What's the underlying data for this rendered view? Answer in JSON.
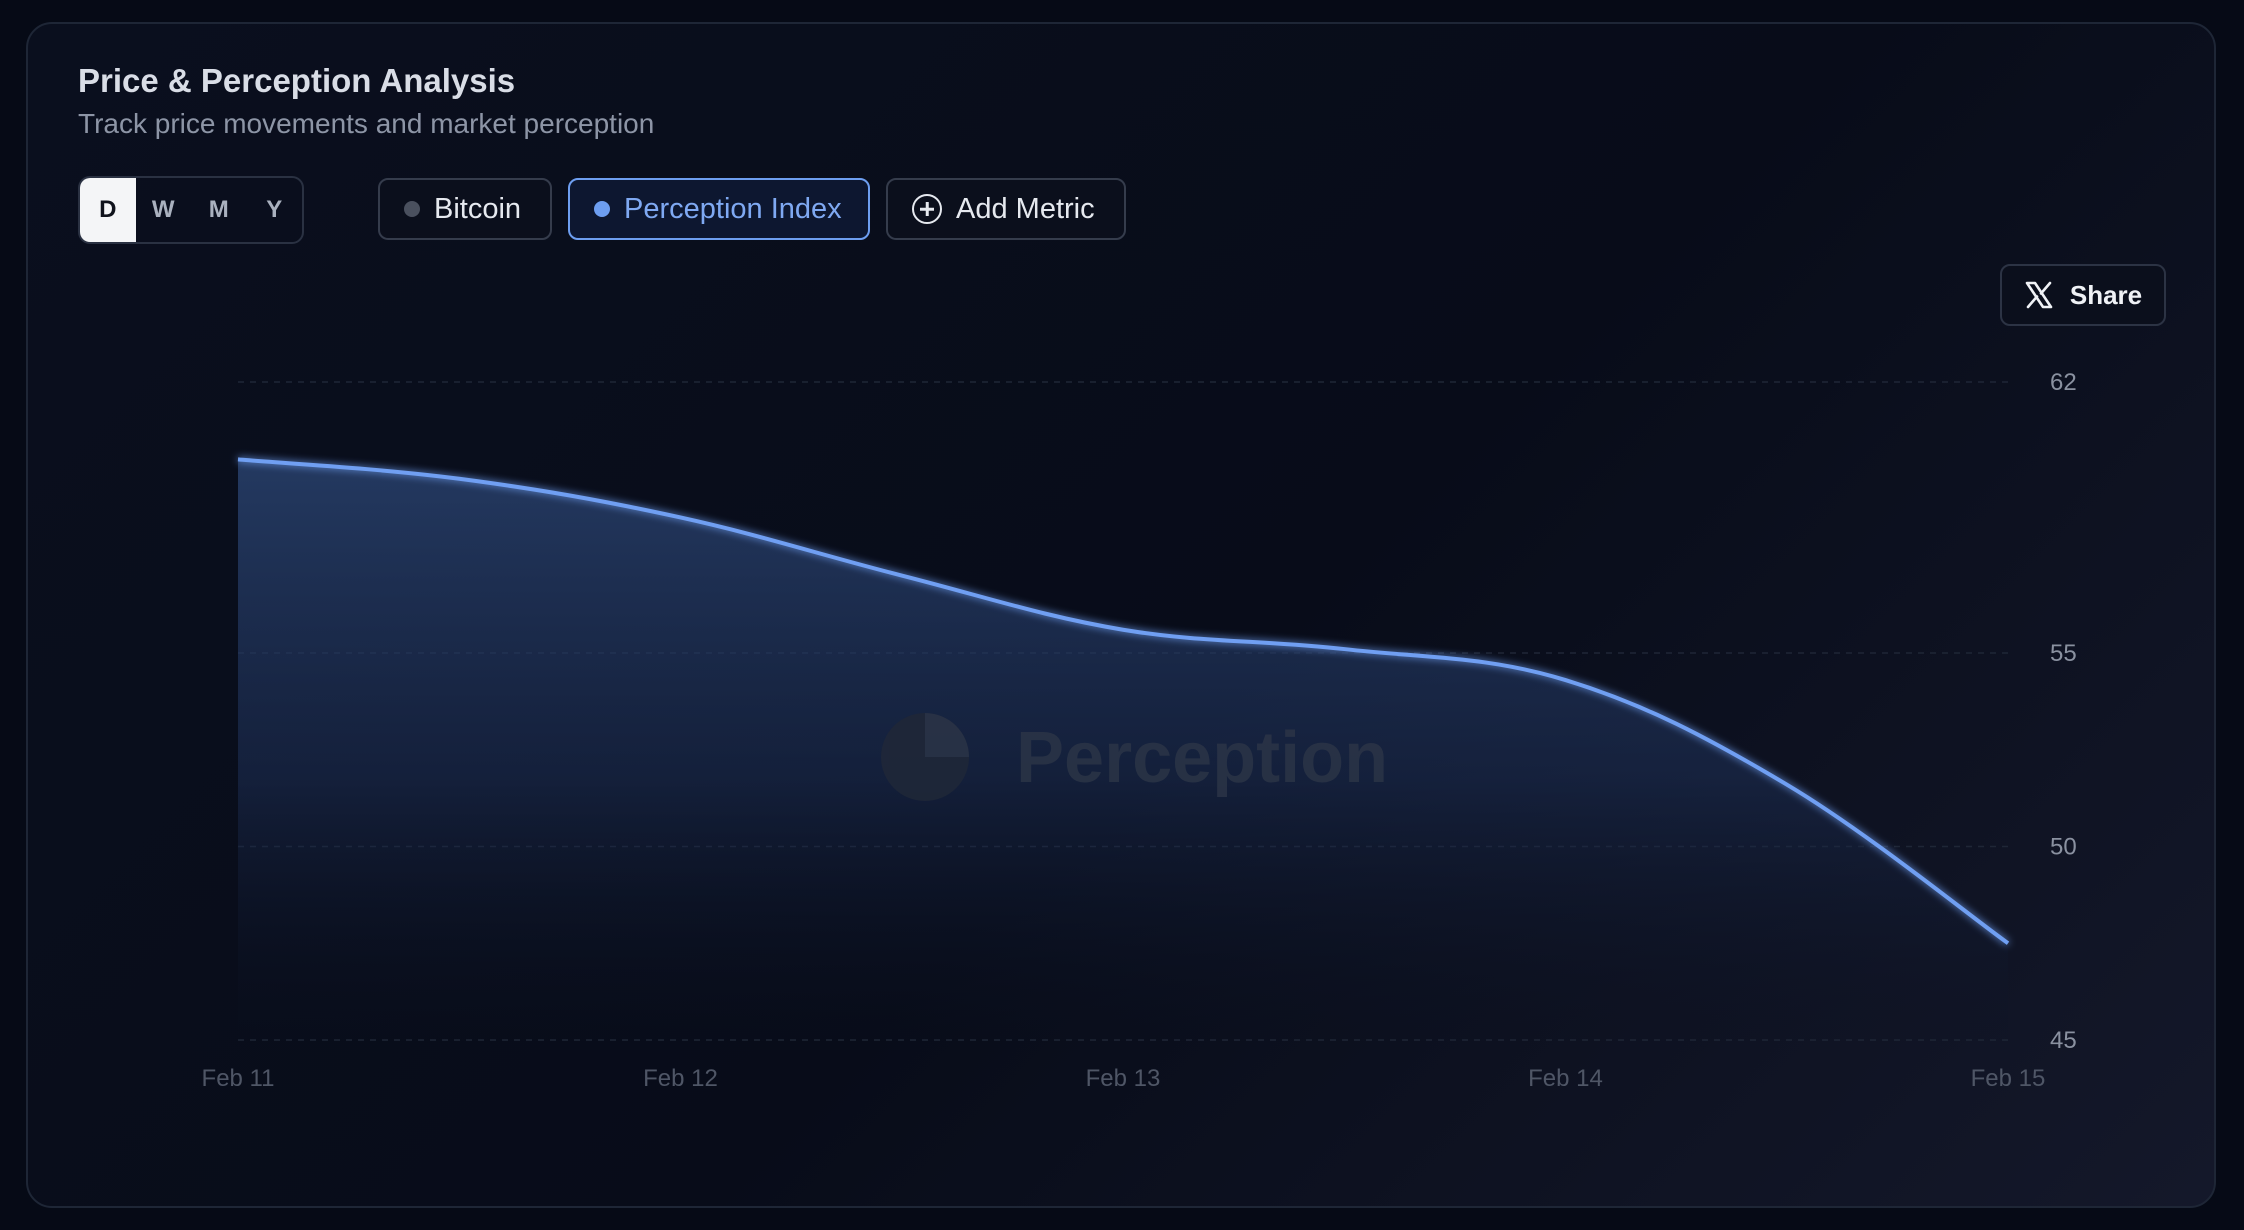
{
  "header": {
    "title": "Price & Perception Analysis",
    "subtitle": "Track price movements and market perception"
  },
  "timeframe": {
    "options": [
      "D",
      "W",
      "M",
      "Y"
    ],
    "selected": "D"
  },
  "metrics": {
    "bitcoin_label": "Bitcoin",
    "perception_label": "Perception Index",
    "add_label": "Add Metric"
  },
  "share": {
    "label": "Share",
    "icon": "x-logo-icon"
  },
  "watermark": {
    "text": "Perception"
  },
  "colors": {
    "accent": "#6d9ef0",
    "line": "#6f9ff2",
    "inactive_dot": "#4a505e"
  },
  "chart_data": {
    "type": "area",
    "x": [
      "Feb 11",
      "Feb 11",
      "Feb 12",
      "Feb 12",
      "Feb 13",
      "Feb 13",
      "Feb 14",
      "Feb 14",
      "Feb 15"
    ],
    "x_positions": [
      0,
      0.5,
      1,
      1.5,
      2,
      2.5,
      3,
      3.5,
      4
    ],
    "x_ticks": [
      "Feb 11",
      "Feb 12",
      "Feb 13",
      "Feb 14",
      "Feb 15"
    ],
    "series": [
      {
        "values": [
          60.0,
          59.5,
          58.5,
          57.0,
          55.6,
          55.1,
          54.3,
          51.6,
          47.5
        ]
      }
    ],
    "y_ticks": [
      45,
      50,
      55,
      62
    ],
    "ylim": [
      45,
      62
    ],
    "y_axis_position": "right",
    "grid": true,
    "title": "",
    "xlabel": "",
    "ylabel": ""
  }
}
